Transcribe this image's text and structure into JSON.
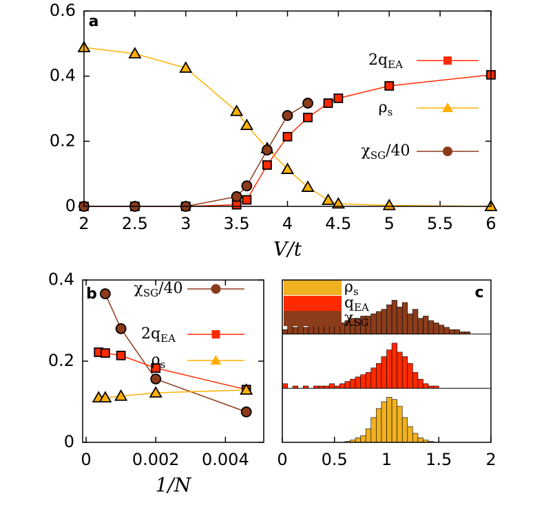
{
  "chart_data": [
    {
      "type": "line",
      "panel_label": "a",
      "xlabel": "V/t",
      "xlim": [
        2,
        6
      ],
      "xticks": [
        2,
        2.5,
        3,
        3.5,
        4,
        4.5,
        5,
        5.5,
        6
      ],
      "ylim": [
        0,
        0.6
      ],
      "yticks": [
        0,
        0.2,
        0.4,
        0.6
      ],
      "legend": "right",
      "series": [
        {
          "name": "2q_EA",
          "color": "#ff2a00",
          "marker": "square",
          "x": [
            2,
            2.5,
            3,
            3.5,
            3.6,
            3.8,
            4,
            4.2,
            4.4,
            4.5,
            5,
            6
          ],
          "values": [
            0,
            0,
            0,
            0.005,
            0.02,
            0.127,
            0.214,
            0.273,
            0.317,
            0.332,
            0.37,
            0.404
          ]
        },
        {
          "name": "ρ_s",
          "color": "#ffb000",
          "marker": "triangle",
          "x": [
            2,
            2.5,
            3,
            3.5,
            3.6,
            3.8,
            4,
            4.2,
            4.4,
            4.5,
            5,
            6
          ],
          "values": [
            0.488,
            0.469,
            0.425,
            0.292,
            0.249,
            0.178,
            0.114,
            0.059,
            0.019,
            0.008,
            0.003,
            0
          ]
        },
        {
          "name": "χ_SG/40",
          "color": "#8b3a1a",
          "marker": "circle",
          "x": [
            2,
            2.5,
            3,
            3.5,
            3.6,
            3.8,
            4,
            4.2
          ],
          "values": [
            0,
            0,
            0,
            0.03,
            0.063,
            0.173,
            0.279,
            0.317
          ]
        }
      ]
    },
    {
      "type": "line",
      "panel_label": "b",
      "xlabel": "1/N",
      "xlim": [
        -0.0001,
        0.0051
      ],
      "xticks": [
        0,
        0.002,
        0.004
      ],
      "ylim": [
        0,
        0.4
      ],
      "yticks": [
        0,
        0.2,
        0.4
      ],
      "legend": "upper right",
      "series": [
        {
          "name": "χ_SG/40",
          "color": "#8b3a1a",
          "marker": "circle",
          "x": [
            0.00055,
            0.001,
            0.002,
            0.0046
          ],
          "values": [
            0.366,
            0.28,
            0.156,
            0.075
          ]
        },
        {
          "name": "2q_EA",
          "color": "#ff2a00",
          "marker": "square",
          "x": [
            0.00036,
            0.00055,
            0.001,
            0.002,
            0.0046
          ],
          "values": [
            0.222,
            0.22,
            0.214,
            0.183,
            0.13
          ]
        },
        {
          "name": "ρ_s",
          "color": "#ffb000",
          "marker": "triangle",
          "x": [
            0.00036,
            0.00055,
            0.001,
            0.002,
            0.0046
          ],
          "values": [
            0.11,
            0.11,
            0.114,
            0.122,
            0.129
          ]
        }
      ]
    },
    {
      "type": "histogram",
      "panel_label": "c",
      "xlim": [
        0,
        2
      ],
      "xticks": [
        0,
        0.5,
        1,
        1.5,
        2
      ],
      "ylim": [
        0,
        1.2
      ],
      "legend": "upper left",
      "bins": [
        0,
        0.05,
        0.1,
        0.15,
        0.2,
        0.25,
        0.3,
        0.35,
        0.4,
        0.45,
        0.5,
        0.55,
        0.6,
        0.65,
        0.7,
        0.75,
        0.8,
        0.85,
        0.9,
        0.95,
        1,
        1.05,
        1.1,
        1.15,
        1.2,
        1.25,
        1.3,
        1.35,
        1.4,
        1.45,
        1.5,
        1.55,
        1.6,
        1.65,
        1.7,
        1.75,
        1.8,
        1.85,
        1.9,
        1.95,
        2
      ],
      "series": [
        {
          "name": "ρ_s",
          "color": "#f0b020",
          "values": [
            0,
            0,
            0,
            0,
            0,
            0,
            0,
            0,
            0,
            0,
            0,
            0,
            0.02,
            0.05,
            0.1,
            0.15,
            0.3,
            0.55,
            0.75,
            0.9,
            1.0,
            0.95,
            0.8,
            0.55,
            0.35,
            0.2,
            0.1,
            0.05,
            0.02,
            0,
            0,
            0,
            0,
            0,
            0,
            0,
            0,
            0,
            0,
            0
          ]
        },
        {
          "name": "q_EA",
          "color": "#ff2a00",
          "values": [
            0.1,
            0,
            0.05,
            0,
            0.05,
            0,
            0.05,
            0.05,
            0.05,
            0.1,
            0.05,
            0.1,
            0.15,
            0.2,
            0.25,
            0.3,
            0.35,
            0.45,
            0.55,
            0.7,
            0.85,
            1.0,
            0.8,
            0.7,
            0.55,
            0.35,
            0.2,
            0.1,
            0.05,
            0.05,
            0,
            0,
            0,
            0,
            0,
            0,
            0,
            0,
            0,
            0
          ]
        },
        {
          "name": "χ_SG",
          "color": "#8b3c1b",
          "values": [
            0.1,
            0.2,
            0.15,
            0.2,
            0.15,
            0.2,
            0.25,
            0.2,
            0.2,
            0.25,
            0.3,
            0.25,
            0.3,
            0.35,
            0.35,
            0.4,
            0.4,
            0.45,
            0.5,
            0.55,
            0.65,
            0.75,
            0.6,
            0.7,
            0.45,
            0.55,
            0.35,
            0.4,
            0.3,
            0.25,
            0.2,
            0.15,
            0.1,
            0.1,
            0.05,
            0.05,
            0,
            0,
            0,
            0
          ]
        }
      ]
    }
  ]
}
